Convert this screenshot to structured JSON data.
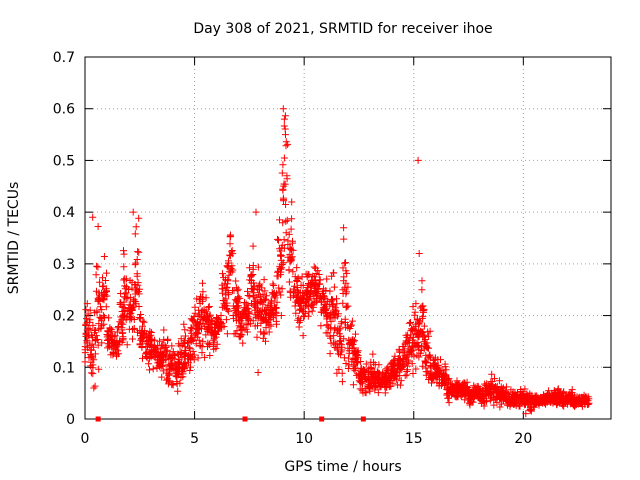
{
  "chart_data": {
    "type": "scatter",
    "title": "Day 308 of 2021, SRMTID for receiver ihoe",
    "xlabel": "GPS time / hours",
    "ylabel": "SRMTID / TECUs",
    "xlim": [
      0,
      24
    ],
    "ylim": [
      0,
      0.7
    ],
    "x_ticks": [
      0,
      5,
      10,
      15,
      20
    ],
    "x_tick_labels": [
      "0",
      "5",
      "10",
      "15",
      "20"
    ],
    "y_ticks": [
      0,
      0.1,
      0.2,
      0.3,
      0.4,
      0.5,
      0.6,
      0.7
    ],
    "y_tick_labels": [
      "0",
      "0.1",
      "0.2",
      "0.3",
      "0.4",
      "0.5",
      "0.6",
      "0.7"
    ],
    "grid": true,
    "marker": "+",
    "color": "#ff0000",
    "baseline_markers_x": [
      0.6,
      7.3,
      10.8,
      12.7
    ],
    "series": [
      {
        "name": "SRMTID",
        "envelope": [
          [
            0.0,
            0.1,
            0.24
          ],
          [
            0.25,
            0.06,
            0.22
          ],
          [
            0.5,
            0.08,
            0.38
          ],
          [
            0.75,
            0.14,
            0.32
          ],
          [
            1.0,
            0.12,
            0.2
          ],
          [
            1.25,
            0.11,
            0.17
          ],
          [
            1.5,
            0.12,
            0.25
          ],
          [
            1.75,
            0.13,
            0.33
          ],
          [
            2.0,
            0.14,
            0.28
          ],
          [
            2.25,
            0.15,
            0.39
          ],
          [
            2.5,
            0.1,
            0.22
          ],
          [
            2.75,
            0.09,
            0.18
          ],
          [
            3.0,
            0.09,
            0.17
          ],
          [
            3.25,
            0.08,
            0.16
          ],
          [
            3.5,
            0.07,
            0.18
          ],
          [
            3.75,
            0.05,
            0.16
          ],
          [
            4.0,
            0.04,
            0.14
          ],
          [
            4.25,
            0.06,
            0.16
          ],
          [
            4.5,
            0.08,
            0.19
          ],
          [
            4.75,
            0.09,
            0.21
          ],
          [
            5.0,
            0.1,
            0.25
          ],
          [
            5.25,
            0.11,
            0.28
          ],
          [
            5.5,
            0.12,
            0.24
          ],
          [
            5.75,
            0.13,
            0.2
          ],
          [
            6.0,
            0.14,
            0.22
          ],
          [
            6.25,
            0.15,
            0.3
          ],
          [
            6.5,
            0.2,
            0.37
          ],
          [
            6.75,
            0.16,
            0.28
          ],
          [
            7.0,
            0.14,
            0.24
          ],
          [
            7.25,
            0.15,
            0.25
          ],
          [
            7.5,
            0.17,
            0.34
          ],
          [
            7.75,
            0.15,
            0.3
          ],
          [
            8.0,
            0.14,
            0.27
          ],
          [
            8.25,
            0.16,
            0.25
          ],
          [
            8.5,
            0.17,
            0.28
          ],
          [
            8.75,
            0.2,
            0.4
          ],
          [
            9.0,
            0.3,
            0.6
          ],
          [
            9.25,
            0.22,
            0.42
          ],
          [
            9.5,
            0.18,
            0.3
          ],
          [
            9.75,
            0.16,
            0.28
          ],
          [
            10.0,
            0.18,
            0.3
          ],
          [
            10.25,
            0.2,
            0.3
          ],
          [
            10.5,
            0.21,
            0.31
          ],
          [
            10.75,
            0.18,
            0.27
          ],
          [
            11.0,
            0.12,
            0.28
          ],
          [
            11.25,
            0.08,
            0.3
          ],
          [
            11.5,
            0.07,
            0.22
          ],
          [
            11.75,
            0.09,
            0.36
          ],
          [
            12.0,
            0.06,
            0.2
          ],
          [
            12.25,
            0.07,
            0.17
          ],
          [
            12.5,
            0.05,
            0.12
          ],
          [
            12.75,
            0.04,
            0.11
          ],
          [
            13.0,
            0.04,
            0.13
          ],
          [
            13.25,
            0.05,
            0.11
          ],
          [
            13.5,
            0.04,
            0.1
          ],
          [
            13.75,
            0.05,
            0.12
          ],
          [
            14.0,
            0.05,
            0.13
          ],
          [
            14.25,
            0.06,
            0.15
          ],
          [
            14.5,
            0.07,
            0.18
          ],
          [
            14.75,
            0.08,
            0.22
          ],
          [
            15.0,
            0.09,
            0.24
          ],
          [
            15.25,
            0.1,
            0.28
          ],
          [
            15.5,
            0.07,
            0.18
          ],
          [
            15.75,
            0.06,
            0.13
          ],
          [
            16.0,
            0.06,
            0.12
          ],
          [
            16.25,
            0.05,
            0.11
          ],
          [
            16.5,
            0.03,
            0.09
          ],
          [
            16.75,
            0.03,
            0.08
          ],
          [
            17.0,
            0.03,
            0.08
          ],
          [
            17.25,
            0.03,
            0.08
          ],
          [
            17.5,
            0.02,
            0.07
          ],
          [
            17.75,
            0.03,
            0.07
          ],
          [
            18.0,
            0.02,
            0.07
          ],
          [
            18.25,
            0.03,
            0.08
          ],
          [
            18.5,
            0.02,
            0.09
          ],
          [
            18.75,
            0.02,
            0.08
          ],
          [
            19.0,
            0.02,
            0.07
          ],
          [
            19.25,
            0.02,
            0.06
          ],
          [
            19.5,
            0.02,
            0.06
          ],
          [
            19.75,
            0.02,
            0.06
          ],
          [
            20.0,
            0.01,
            0.06
          ],
          [
            20.25,
            0.01,
            0.06
          ],
          [
            20.5,
            0.02,
            0.05
          ],
          [
            20.75,
            0.02,
            0.05
          ],
          [
            21.0,
            0.02,
            0.06
          ],
          [
            21.25,
            0.02,
            0.06
          ],
          [
            21.5,
            0.02,
            0.07
          ],
          [
            21.75,
            0.02,
            0.06
          ],
          [
            22.0,
            0.02,
            0.06
          ],
          [
            22.25,
            0.02,
            0.05
          ],
          [
            22.5,
            0.02,
            0.05
          ],
          [
            22.75,
            0.02,
            0.05
          ]
        ],
        "outliers": [
          [
            0.35,
            0.39
          ],
          [
            0.4,
            0.06
          ],
          [
            2.2,
            0.4
          ],
          [
            7.8,
            0.4
          ],
          [
            7.9,
            0.09
          ],
          [
            9.05,
            0.6
          ],
          [
            9.1,
            0.58
          ],
          [
            9.15,
            0.55
          ],
          [
            15.2,
            0.5
          ],
          [
            15.25,
            0.32
          ],
          [
            11.8,
            0.37
          ]
        ]
      }
    ]
  }
}
